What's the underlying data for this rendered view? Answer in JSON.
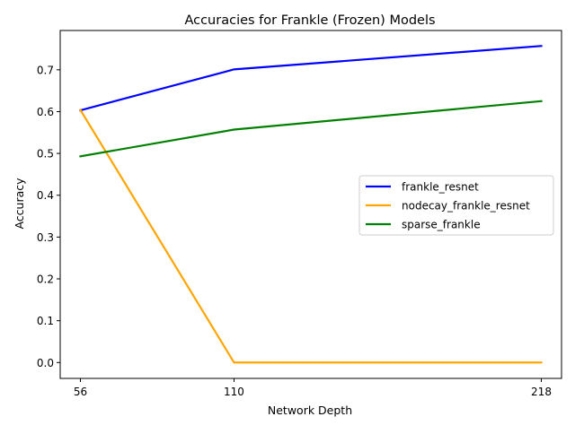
{
  "chart_data": {
    "type": "line",
    "title": "Accuracies for Frankle (Frozen) Models",
    "xlabel": "Network Depth",
    "ylabel": "Accuracy",
    "x": [
      56,
      110,
      218
    ],
    "x_tick_labels": [
      "56",
      "110",
      "218"
    ],
    "xlim": [
      48.9,
      225.1
    ],
    "ylim": [
      -0.038,
      0.794
    ],
    "y_ticks": [
      0.0,
      0.1,
      0.2,
      0.3,
      0.4,
      0.5,
      0.6,
      0.7
    ],
    "y_tick_labels": [
      "0.0",
      "0.1",
      "0.2",
      "0.3",
      "0.4",
      "0.5",
      "0.6",
      "0.7"
    ],
    "grid": false,
    "legend_position": "center-right",
    "series": [
      {
        "name": "frankle_resnet",
        "color": "#0000ff",
        "values": [
          0.603,
          0.701,
          0.757
        ]
      },
      {
        "name": "nodecay_frankle_resnet",
        "color": "#ffa500",
        "values": [
          0.604,
          0.0,
          0.0
        ]
      },
      {
        "name": "sparse_frankle",
        "color": "#008000",
        "values": [
          0.493,
          0.557,
          0.625
        ]
      }
    ]
  }
}
